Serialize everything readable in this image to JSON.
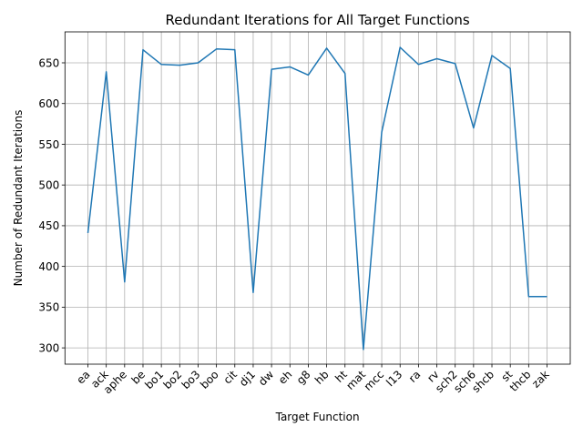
{
  "chart_data": {
    "type": "line",
    "title": "Redundant Iterations for All Target Functions",
    "xlabel": "Target Function",
    "ylabel": "Number of Redundant Iterations",
    "categories": [
      "ea",
      "ack",
      "aphe",
      "be",
      "bo1",
      "bo2",
      "bo3",
      "boo",
      "cit",
      "dj1",
      "dw",
      "eh",
      "g8",
      "hb",
      "ht",
      "mat",
      "mcc",
      "l13",
      "ra",
      "rv",
      "sch2",
      "sch6",
      "shcb",
      "st",
      "thcb",
      "zak"
    ],
    "series": [
      {
        "values": [
          441,
          639,
          381,
          666,
          648,
          647,
          650,
          667,
          666,
          368,
          642,
          645,
          635,
          668,
          637,
          298,
          565,
          669,
          648,
          655,
          649,
          570,
          659,
          643,
          363,
          363
        ],
        "color": "#1f77b4"
      }
    ],
    "ylim": [
      280,
      688
    ],
    "yticks": [
      300,
      350,
      400,
      450,
      500,
      550,
      600,
      650
    ],
    "grid": true,
    "legend": "none"
  }
}
